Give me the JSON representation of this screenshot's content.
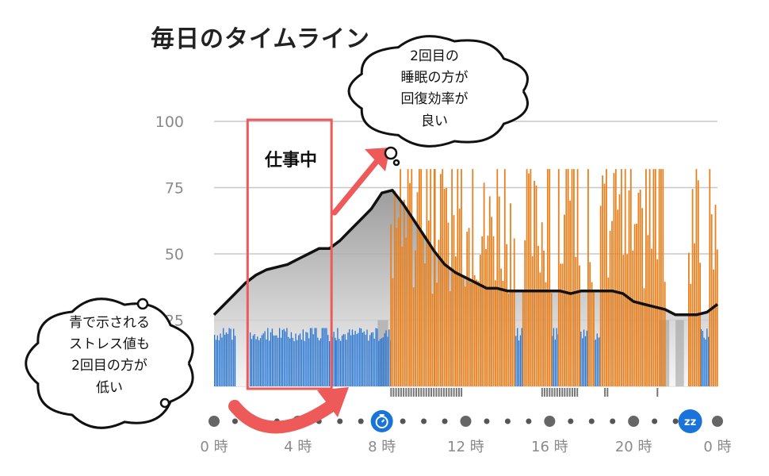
{
  "title": "毎日のタイムライン",
  "colors": {
    "grid": "#c8c8c8",
    "axis_text": "#8a8a8a",
    "blue": "#1f6fd0",
    "orange": "#e8801e",
    "line": "#111111",
    "gray_fill_top": "#8c8c8c",
    "gray_fill_bottom": "#f2f2f2",
    "highlight": "#ee5a5a",
    "dot": "#555555",
    "icon_bg": "#1a73d9"
  },
  "annotations": {
    "work_label": "仕事中",
    "bubble_top": [
      "2回目の",
      "睡眠の方が",
      "回復効率が",
      "良い"
    ],
    "bubble_left": [
      "青で示される",
      "ストレス値も",
      "2回目の方が",
      "低い"
    ]
  },
  "icons": {
    "timer": "stopwatch-icon",
    "sleep": "sleep-zz-icon",
    "sleep_text": "zz"
  },
  "chart_data": {
    "type": "area",
    "ylim": [
      0,
      100
    ],
    "yticks": [
      0,
      25,
      50,
      75,
      100
    ],
    "xlim": [
      0,
      24
    ],
    "xticks": [
      0,
      4,
      8,
      12,
      16,
      20,
      24
    ],
    "xtick_labels": [
      "0 時",
      "4 時",
      "8 時",
      "12 時",
      "16 時",
      "20 時",
      "0 時"
    ],
    "battery_line": {
      "x": [
        0,
        0.5,
        1,
        1.5,
        2,
        2.5,
        3,
        3.5,
        4,
        4.5,
        5,
        5.5,
        6,
        6.5,
        7,
        7.5,
        8,
        8.5,
        9,
        9.5,
        10,
        10.5,
        11,
        11.5,
        12,
        12.5,
        13,
        13.5,
        14,
        14.5,
        15,
        15.5,
        16,
        16.5,
        17,
        17.5,
        18,
        18.5,
        19,
        19.5,
        20,
        20.5,
        21,
        21.5,
        22,
        22.5,
        23,
        23.5,
        24
      ],
      "y": [
        27,
        31,
        35,
        39,
        42,
        44,
        45,
        46,
        48,
        50,
        52,
        52,
        55,
        59,
        63,
        67,
        73,
        74,
        69,
        63,
        57,
        51,
        46,
        43,
        41,
        39,
        37,
        37,
        36,
        36,
        36,
        36,
        36,
        36,
        35,
        36,
        36,
        36,
        36,
        35,
        32,
        31,
        30,
        29,
        27,
        27,
        27,
        28,
        31
      ]
    },
    "stress_blue": {
      "ranges": [
        [
          0,
          1.0
        ],
        [
          1.7,
          5.8
        ],
        [
          5.8,
          8.4
        ],
        [
          14.3,
          14.7
        ],
        [
          16.1,
          16.4
        ],
        [
          17.4,
          17.8
        ],
        [
          18.1,
          18.4
        ],
        [
          23.2,
          23.6
        ]
      ],
      "level": [
        17,
        22
      ]
    },
    "stress_orange": {
      "ranges": [
        [
          8.4,
          10.5
        ],
        [
          10.5,
          14.3
        ],
        [
          14.7,
          16.1
        ],
        [
          16.4,
          17.4
        ],
        [
          17.8,
          18.1
        ],
        [
          18.4,
          21.5
        ],
        [
          22.6,
          23.2
        ],
        [
          23.6,
          24.0
        ]
      ],
      "level": [
        35,
        82
      ]
    },
    "sleep_gray_band": [
      [
        7.8,
        8.3
      ],
      [
        21.2,
        21.7
      ],
      [
        22.0,
        22.4
      ]
    ],
    "activity_ticks": [
      [
        8.4,
        11.8
      ],
      [
        15.6,
        17.4
      ],
      [
        18.6,
        18.8
      ],
      [
        21.1,
        21.2
      ]
    ],
    "work_span": [
      1.6,
      5.6
    ],
    "timeline_markers": {
      "big_dots": [
        0,
        4,
        12,
        16,
        20,
        24
      ],
      "timer_icon": 8,
      "sleep_icon": 22.7
    }
  }
}
